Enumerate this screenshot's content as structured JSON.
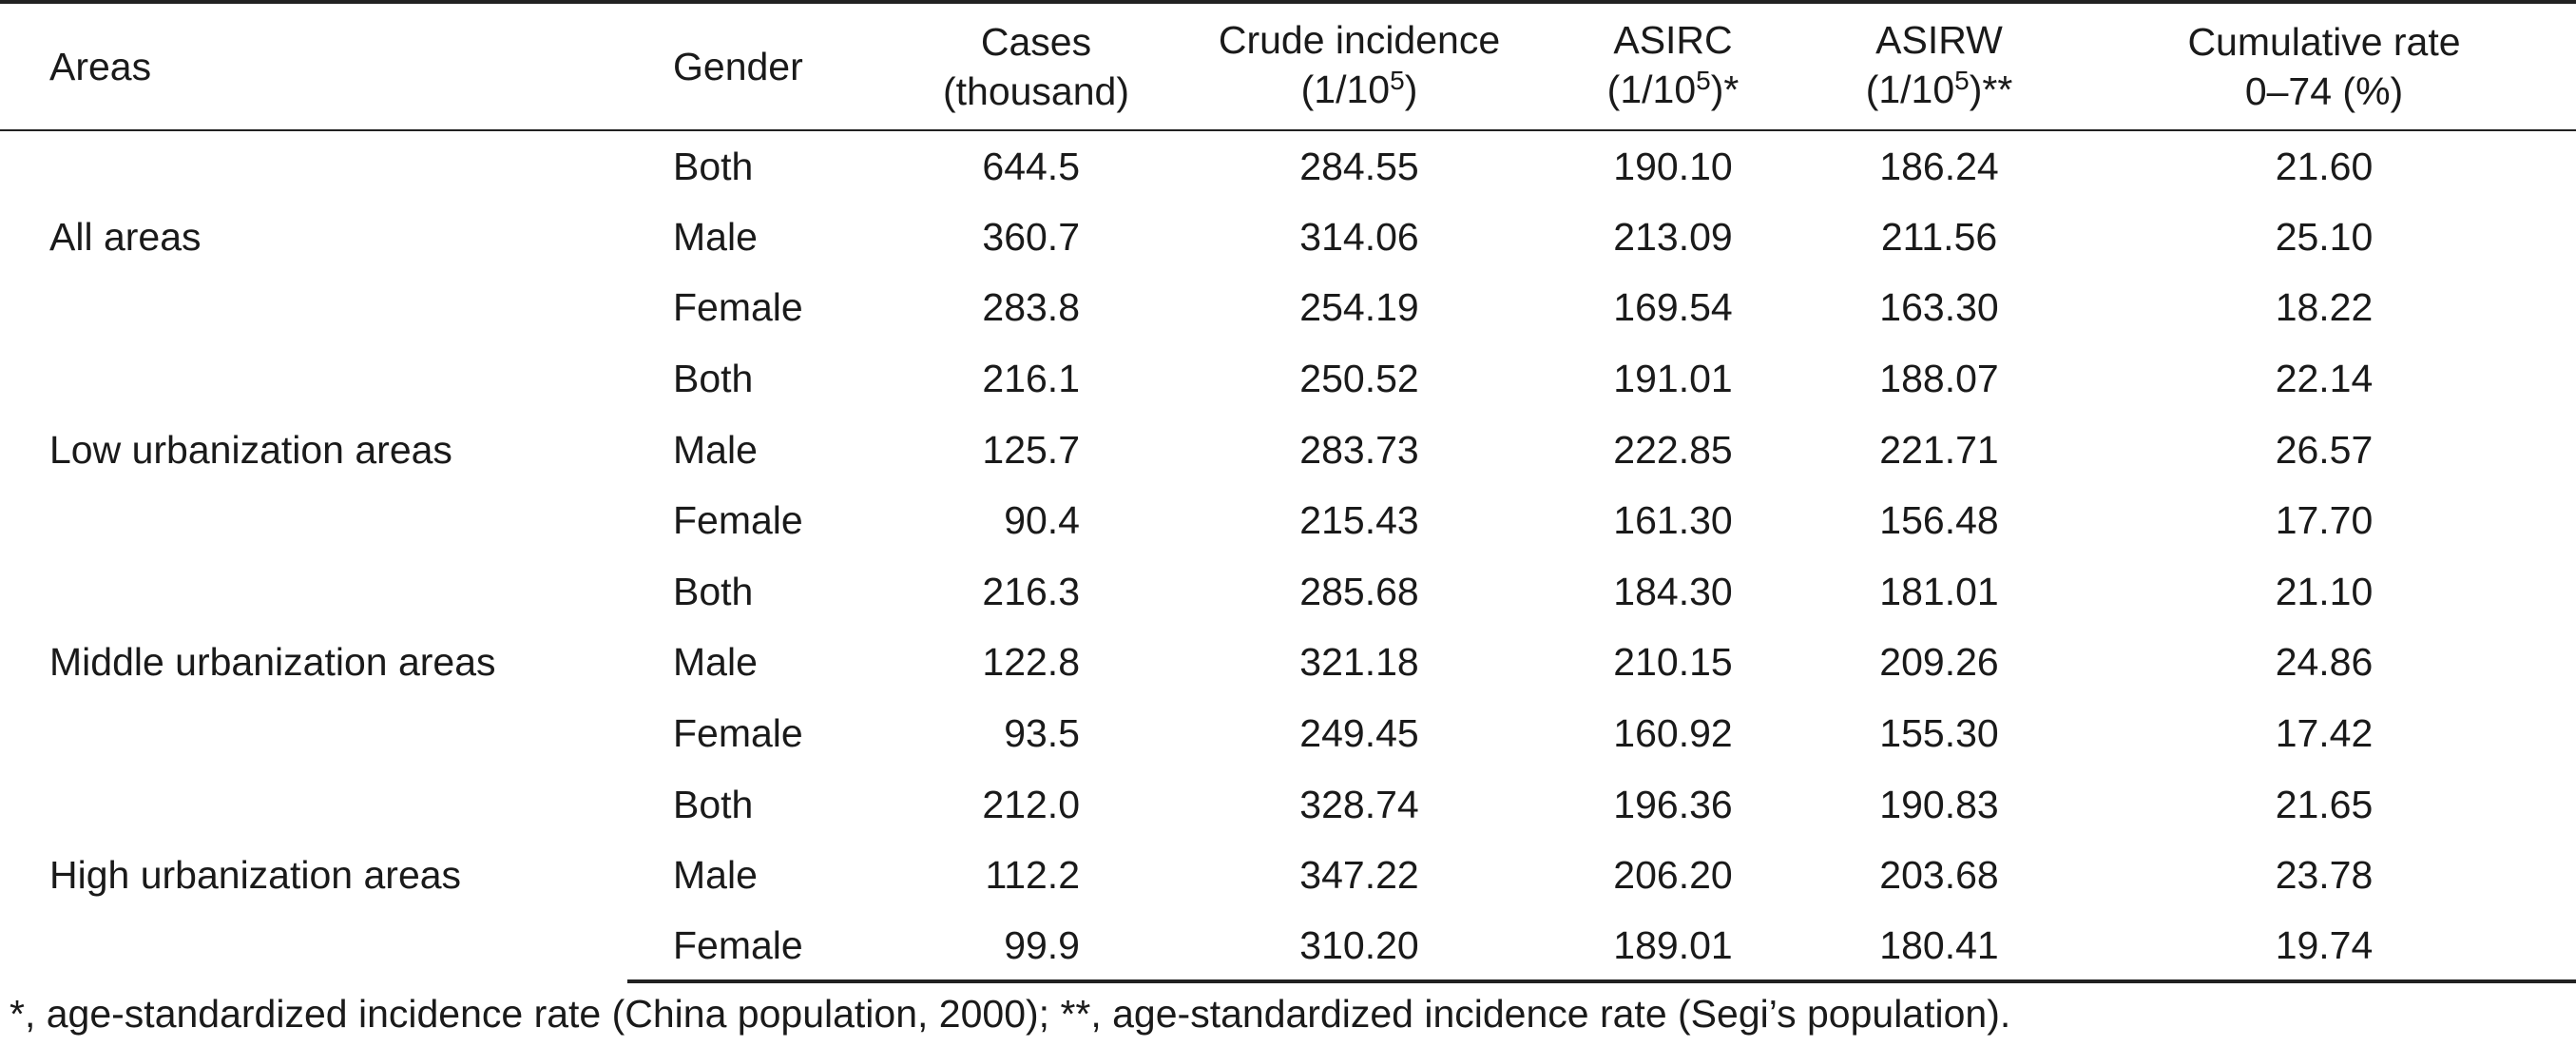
{
  "table": {
    "headers": {
      "areas": "Areas",
      "gender": "Gender",
      "cases_l1": "Cases",
      "cases_l2": "(thousand)",
      "crude_l1": "Crude incidence",
      "crude_l2_pre": "(1/10",
      "crude_l2_sup": "5",
      "crude_l2_post": ")",
      "asirc_l1": "ASIRC",
      "asirc_l2_pre": "(1/10",
      "asirc_l2_sup": "5",
      "asirc_l2_post": ")*",
      "asirw_l1": "ASIRW",
      "asirw_l2_pre": "(1/10",
      "asirw_l2_sup": "5",
      "asirw_l2_post": ")**",
      "cum_l1": "Cumulative rate",
      "cum_l2": "0–74 (%)"
    },
    "groups": [
      {
        "area": "All areas",
        "rows": [
          {
            "gender": "Both",
            "cases": "644.5",
            "crude": "284.55",
            "asirc": "190.10",
            "asirw": "186.24",
            "cum": "21.60"
          },
          {
            "gender": "Male",
            "cases": "360.7",
            "crude": "314.06",
            "asirc": "213.09",
            "asirw": "211.56",
            "cum": "25.10"
          },
          {
            "gender": "Female",
            "cases": "283.8",
            "crude": "254.19",
            "asirc": "169.54",
            "asirw": "163.30",
            "cum": "18.22"
          }
        ]
      },
      {
        "area": "Low urbanization areas",
        "rows": [
          {
            "gender": "Both",
            "cases": "216.1",
            "crude": "250.52",
            "asirc": "191.01",
            "asirw": "188.07",
            "cum": "22.14"
          },
          {
            "gender": "Male",
            "cases": "125.7",
            "crude": "283.73",
            "asirc": "222.85",
            "asirw": "221.71",
            "cum": "26.57"
          },
          {
            "gender": "Female",
            "cases": "90.4",
            "crude": "215.43",
            "asirc": "161.30",
            "asirw": "156.48",
            "cum": "17.70"
          }
        ]
      },
      {
        "area": "Middle urbanization areas",
        "rows": [
          {
            "gender": "Both",
            "cases": "216.3",
            "crude": "285.68",
            "asirc": "184.30",
            "asirw": "181.01",
            "cum": "21.10"
          },
          {
            "gender": "Male",
            "cases": "122.8",
            "crude": "321.18",
            "asirc": "210.15",
            "asirw": "209.26",
            "cum": "24.86"
          },
          {
            "gender": "Female",
            "cases": "93.5",
            "crude": "249.45",
            "asirc": "160.92",
            "asirw": "155.30",
            "cum": "17.42"
          }
        ]
      },
      {
        "area": "High urbanization areas",
        "rows": [
          {
            "gender": "Both",
            "cases": "212.0",
            "crude": "328.74",
            "asirc": "196.36",
            "asirw": "190.83",
            "cum": "21.65"
          },
          {
            "gender": "Male",
            "cases": "112.2",
            "crude": "347.22",
            "asirc": "206.20",
            "asirw": "203.68",
            "cum": "23.78"
          },
          {
            "gender": "Female",
            "cases": "99.9",
            "crude": "310.20",
            "asirc": "189.01",
            "asirw": "180.41",
            "cum": "19.74"
          }
        ]
      }
    ]
  },
  "footnote": "*, age-standardized incidence rate (China population, 2000); **, age-standardized incidence rate (Segi’s population)."
}
